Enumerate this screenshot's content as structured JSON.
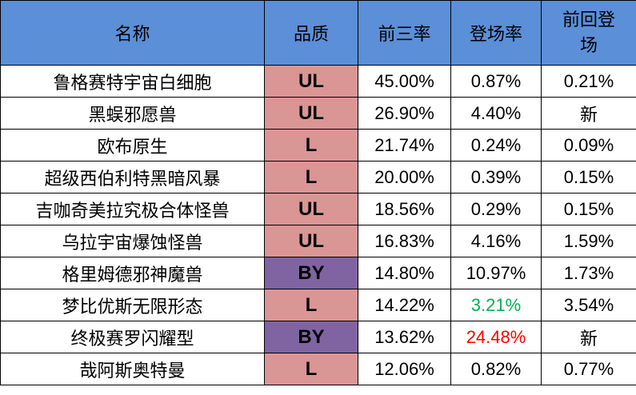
{
  "table": {
    "header": [
      "名称",
      "品质",
      "前三率",
      "登场率",
      "前回登场"
    ],
    "rows": [
      [
        "鲁格赛特宇宙白细胞",
        "UL",
        "45.00%",
        "0.87%",
        "0.21%"
      ],
      [
        "黑蜈邪愿兽",
        "UL",
        "26.90%",
        "4.40%",
        "新"
      ],
      [
        "欧布原生",
        "L",
        "21.74%",
        "0.24%",
        "0.09%"
      ],
      [
        "超级西伯利特黑暗风暴",
        "L",
        "20.00%",
        "0.39%",
        "0.15%"
      ],
      [
        "吉咖奇美拉究极合体怪兽",
        "UL",
        "18.56%",
        "0.29%",
        "0.15%"
      ],
      [
        "乌拉宇宙爆蚀怪兽",
        "UL",
        "16.83%",
        "4.16%",
        "1.59%"
      ],
      [
        "格里姆德邪神魔兽",
        "BY",
        "14.80%",
        "10.97%",
        "1.73%"
      ],
      [
        "梦比优斯无限形态",
        "L",
        "14.22%",
        "3.21%",
        "3.54%"
      ],
      [
        "终极赛罗闪耀型",
        "BY",
        "13.62%",
        "24.48%",
        "新"
      ],
      [
        "哉阿斯奥特曼",
        "L",
        "12.06%",
        "0.82%",
        "0.77%"
      ]
    ]
  }
}
